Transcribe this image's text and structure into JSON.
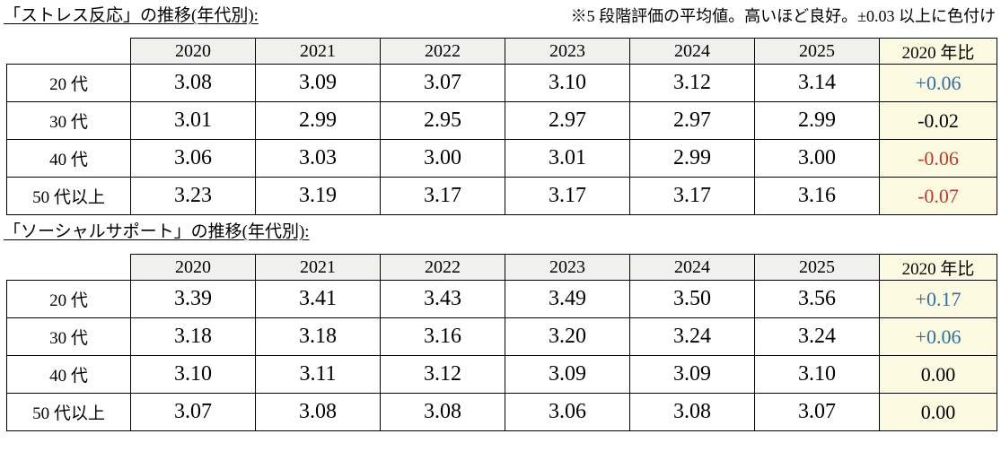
{
  "page": {
    "note": "※5 段階評価の平均値。高いほど良好。±0.03 以上に色付け"
  },
  "colors": {
    "positive_text": "#2E6EA0",
    "negative_text": "#BE3B2B",
    "neutral_text": "#000000",
    "year_header_bg": "#F0F0EE",
    "diff_col_bg": "#FCFAE1",
    "border": "#000000"
  },
  "tables": [
    {
      "title": "「ストレス反応」の推移(年代別):",
      "years": [
        "2020",
        "2021",
        "2022",
        "2023",
        "2024",
        "2025"
      ],
      "diff_header": "2020 年比",
      "rows": [
        {
          "label": "20 代",
          "values": [
            "3.08",
            "3.09",
            "3.07",
            "3.10",
            "3.12",
            "3.14"
          ],
          "diff": "+0.06",
          "trend": "positive"
        },
        {
          "label": "30 代",
          "values": [
            "3.01",
            "2.99",
            "2.95",
            "2.97",
            "2.97",
            "2.99"
          ],
          "diff": "-0.02",
          "trend": "neutral"
        },
        {
          "label": "40 代",
          "values": [
            "3.06",
            "3.03",
            "3.00",
            "3.01",
            "2.99",
            "3.00"
          ],
          "diff": "-0.06",
          "trend": "negative"
        },
        {
          "label": "50 代以上",
          "values": [
            "3.23",
            "3.19",
            "3.17",
            "3.17",
            "3.17",
            "3.16"
          ],
          "diff": "-0.07",
          "trend": "negative"
        }
      ]
    },
    {
      "title": "「ソーシャルサポート」の推移(年代別):",
      "years": [
        "2020",
        "2021",
        "2022",
        "2023",
        "2024",
        "2025"
      ],
      "diff_header": "2020 年比",
      "rows": [
        {
          "label": "20 代",
          "values": [
            "3.39",
            "3.41",
            "3.43",
            "3.49",
            "3.50",
            "3.56"
          ],
          "diff": "+0.17",
          "trend": "positive"
        },
        {
          "label": "30 代",
          "values": [
            "3.18",
            "3.18",
            "3.16",
            "3.20",
            "3.24",
            "3.24"
          ],
          "diff": "+0.06",
          "trend": "positive"
        },
        {
          "label": "40 代",
          "values": [
            "3.10",
            "3.11",
            "3.12",
            "3.09",
            "3.09",
            "3.10"
          ],
          "diff": "0.00",
          "trend": "neutral"
        },
        {
          "label": "50 代以上",
          "values": [
            "3.07",
            "3.08",
            "3.08",
            "3.06",
            "3.08",
            "3.07"
          ],
          "diff": "0.00",
          "trend": "neutral"
        }
      ]
    }
  ]
}
